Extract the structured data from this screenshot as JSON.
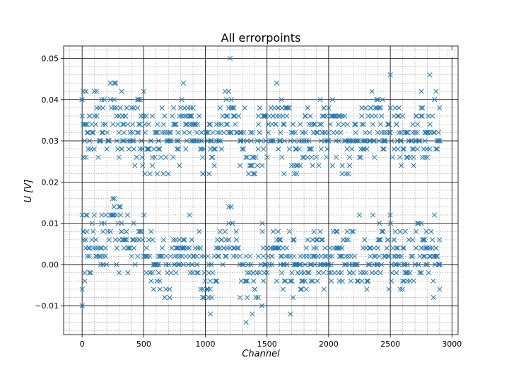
{
  "chart_data": {
    "type": "scatter",
    "title": "All errorpoints",
    "xlabel": "Channel",
    "ylabel": "U [V]",
    "xlim": [
      -150,
      3050
    ],
    "ylim": [
      -0.017,
      0.053
    ],
    "xticks": [
      0,
      500,
      1000,
      1500,
      2000,
      2500,
      3000
    ],
    "xtick_labels": [
      "0",
      "500",
      "1000",
      "1500",
      "2000",
      "2500",
      "3000"
    ],
    "yticks": [
      -0.01,
      0.0,
      0.01,
      0.02,
      0.03,
      0.04,
      0.05
    ],
    "ytick_labels": [
      "−0.01",
      "0.00",
      "0.01",
      "0.02",
      "0.03",
      "0.04",
      "0.05"
    ],
    "grid": {
      "major": true,
      "minor": true
    },
    "legend": "top-right (empty)",
    "series": [
      {
        "marker": "x",
        "color": "#1f77b4",
        "x_step": 10,
        "upper_band": {
          "x_start": 0,
          "x_end": 2900,
          "y_min": 0.022,
          "y_max": 0.046,
          "y_center": [
            [
              0,
              0.034
            ],
            [
              150,
              0.033
            ],
            [
              250,
              0.038
            ],
            [
              350,
              0.032
            ],
            [
              450,
              0.034
            ],
            [
              550,
              0.03
            ],
            [
              650,
              0.031
            ],
            [
              750,
              0.031
            ],
            [
              850,
              0.036
            ],
            [
              950,
              0.03
            ],
            [
              1050,
              0.028
            ],
            [
              1200,
              0.04
            ],
            [
              1300,
              0.027
            ],
            [
              1400,
              0.025
            ],
            [
              1550,
              0.037
            ],
            [
              1650,
              0.032
            ],
            [
              1750,
              0.029
            ],
            [
              1850,
              0.031
            ],
            [
              1950,
              0.032
            ],
            [
              2050,
              0.033
            ],
            [
              2150,
              0.03
            ],
            [
              2300,
              0.032
            ],
            [
              2450,
              0.034
            ],
            [
              2550,
              0.032
            ],
            [
              2650,
              0.03
            ],
            [
              2750,
              0.033
            ],
            [
              2900,
              0.033
            ]
          ]
        },
        "lower_band": {
          "x_start": 0,
          "x_end": 2900,
          "y_min": -0.014,
          "y_max": 0.016,
          "y_center": [
            [
              0,
              0.004
            ],
            [
              150,
              0.005
            ],
            [
              250,
              0.011
            ],
            [
              350,
              0.004
            ],
            [
              450,
              0.006
            ],
            [
              550,
              0.002
            ],
            [
              650,
              0.0
            ],
            [
              750,
              0.001
            ],
            [
              850,
              0.006
            ],
            [
              950,
              0.0
            ],
            [
              1050,
              -0.002
            ],
            [
              1200,
              0.008
            ],
            [
              1300,
              -0.003
            ],
            [
              1400,
              -0.005
            ],
            [
              1550,
              0.005
            ],
            [
              1650,
              0.002
            ],
            [
              1750,
              -0.001
            ],
            [
              1850,
              0.001
            ],
            [
              1950,
              0.002
            ],
            [
              2050,
              0.003
            ],
            [
              2150,
              0.0
            ],
            [
              2300,
              0.002
            ],
            [
              2450,
              0.004
            ],
            [
              2550,
              0.002
            ],
            [
              2650,
              0.001
            ],
            [
              2750,
              0.003
            ],
            [
              2900,
              0.003
            ]
          ]
        },
        "outliers": [
          {
            "x": 0,
            "y": 0.04
          },
          {
            "x": 0,
            "y": -0.006
          },
          {
            "x": 0,
            "y": -0.01
          },
          {
            "x": 1200,
            "y": 0.05
          },
          {
            "x": 1330,
            "y": -0.014
          },
          {
            "x": 1690,
            "y": -0.012
          },
          {
            "x": 2500,
            "y": 0.046
          },
          {
            "x": 2820,
            "y": 0.046
          },
          {
            "x": 2900,
            "y": -0.006
          }
        ]
      }
    ]
  }
}
